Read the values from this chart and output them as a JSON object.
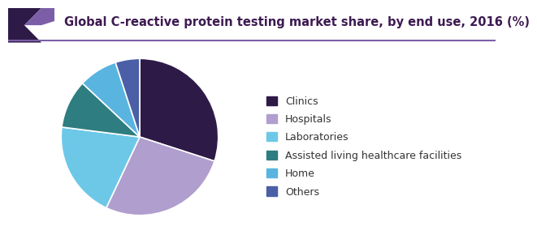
{
  "title": "Global C-reactive protein testing market share, by end use, 2016 (%)",
  "labels": [
    "Clinics",
    "Hospitals",
    "Laboratories",
    "Assisted living healthcare facilities",
    "Home",
    "Others"
  ],
  "values": [
    30,
    27,
    20,
    10,
    8,
    5
  ],
  "colors": [
    "#2e1a47",
    "#b09ece",
    "#6dc8e8",
    "#2e7d80",
    "#5ab4e0",
    "#4a5fa5"
  ],
  "title_fontsize": 10.5,
  "legend_fontsize": 9,
  "title_color": "#3d1a52",
  "corner_dark": "#2e1a47",
  "corner_mid": "#7b5ea7",
  "line_color": "#7b5ea7",
  "background_color": "#ffffff"
}
